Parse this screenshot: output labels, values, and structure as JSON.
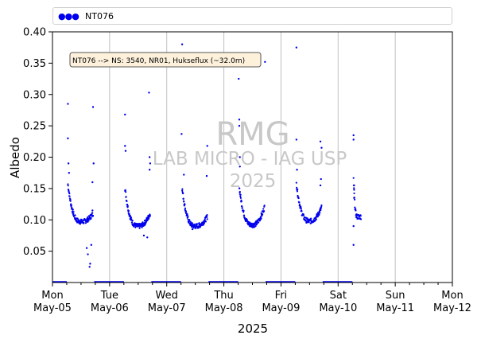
{
  "legend": {
    "marker": "●●●",
    "label": "NT076"
  },
  "annotation": "NT076 --> NS: 3540, NR01, Hukseflux (~32.0m)",
  "watermark": {
    "line1": "RMG",
    "line2": "LAB MICRO - IAG USP",
    "line3": "2025"
  },
  "colors": {
    "series": "#0000ee",
    "grid": "#c0c0c0",
    "annotation_bg": "#fdf1dc",
    "watermark": "#c8c8c8"
  },
  "chart_data": {
    "type": "scatter",
    "title": "",
    "xlabel": "2025",
    "ylabel": "Albedo",
    "ylim": [
      0.0,
      0.4
    ],
    "yticks": [
      0.05,
      0.1,
      0.15,
      0.2,
      0.25,
      0.3,
      0.35,
      0.4
    ],
    "ytick_labels": [
      "0.05",
      "0.10",
      "0.15",
      "0.20",
      "0.25",
      "0.30",
      "0.35",
      "0.40"
    ],
    "xlim": [
      0,
      7
    ],
    "xticks": [
      {
        "x": 0,
        "day": "Mon",
        "date": "May-05"
      },
      {
        "x": 1,
        "day": "Tue",
        "date": "May-06"
      },
      {
        "x": 2,
        "day": "Wed",
        "date": "May-07"
      },
      {
        "x": 3,
        "day": "Thu",
        "date": "May-08"
      },
      {
        "x": 4,
        "day": "Fri",
        "date": "May-09"
      },
      {
        "x": 5,
        "day": "Sat",
        "date": "May-10"
      },
      {
        "x": 6,
        "day": "Sun",
        "date": "May-11"
      },
      {
        "x": 7,
        "day": "Mon",
        "date": "May-12"
      }
    ],
    "grid": "vertical",
    "legend_position": "top",
    "series": [
      {
        "name": "NT076",
        "days": [
          {
            "start": 0.27,
            "end": 0.71,
            "min": 0.097,
            "tail_end": 0.11,
            "outliers": [
              [
                0.27,
                0.285
              ],
              [
                0.27,
                0.23
              ],
              [
                0.28,
                0.19
              ],
              [
                0.29,
                0.175
              ],
              [
                0.71,
                0.28
              ],
              [
                0.72,
                0.19
              ],
              [
                0.7,
                0.16
              ],
              [
                0.68,
                0.06
              ],
              [
                0.62,
                0.045
              ],
              [
                0.66,
                0.03
              ],
              [
                0.6,
                0.055
              ],
              [
                0.65,
                0.025
              ],
              [
                0.7,
                0.115
              ]
            ]
          },
          {
            "start": 1.27,
            "end": 1.71,
            "min": 0.09,
            "tail_end": 0.11,
            "outliers": [
              [
                1.27,
                0.268
              ],
              [
                1.27,
                0.218
              ],
              [
                1.28,
                0.21
              ],
              [
                1.69,
                0.303
              ],
              [
                1.7,
                0.2
              ],
              [
                1.71,
                0.19
              ],
              [
                1.6,
                0.075
              ],
              [
                1.66,
                0.072
              ],
              [
                1.7,
                0.18
              ]
            ]
          },
          {
            "start": 2.27,
            "end": 2.71,
            "min": 0.09,
            "tail_end": 0.105,
            "outliers": [
              [
                2.27,
                0.38
              ],
              [
                2.26,
                0.237
              ],
              [
                2.3,
                0.172
              ],
              [
                2.71,
                0.218
              ],
              [
                2.7,
                0.17
              ],
              [
                2.45,
                0.085
              ]
            ]
          },
          {
            "start": 3.27,
            "end": 3.71,
            "min": 0.092,
            "tail_end": 0.12,
            "outliers": [
              [
                3.26,
                0.325
              ],
              [
                3.27,
                0.26
              ],
              [
                3.27,
                0.25
              ],
              [
                3.72,
                0.352
              ],
              [
                3.28,
                0.2
              ],
              [
                3.28,
                0.185
              ]
            ]
          },
          {
            "start": 4.27,
            "end": 4.71,
            "min": 0.098,
            "tail_end": 0.12,
            "outliers": [
              [
                4.27,
                0.375
              ],
              [
                4.27,
                0.228
              ],
              [
                4.28,
                0.18
              ],
              [
                4.69,
                0.225
              ],
              [
                4.71,
                0.215
              ],
              [
                4.7,
                0.165
              ],
              [
                4.69,
                0.155
              ]
            ]
          },
          {
            "start": 5.27,
            "end": 5.4,
            "min": 0.105,
            "tail_end": 0.105,
            "outliers": [
              [
                5.27,
                0.235
              ],
              [
                5.27,
                0.228
              ],
              [
                5.28,
                0.155
              ],
              [
                5.28,
                0.148
              ],
              [
                5.27,
                0.09
              ],
              [
                5.27,
                0.06
              ],
              [
                5.28,
                0.135
              ]
            ]
          }
        ]
      }
    ]
  }
}
